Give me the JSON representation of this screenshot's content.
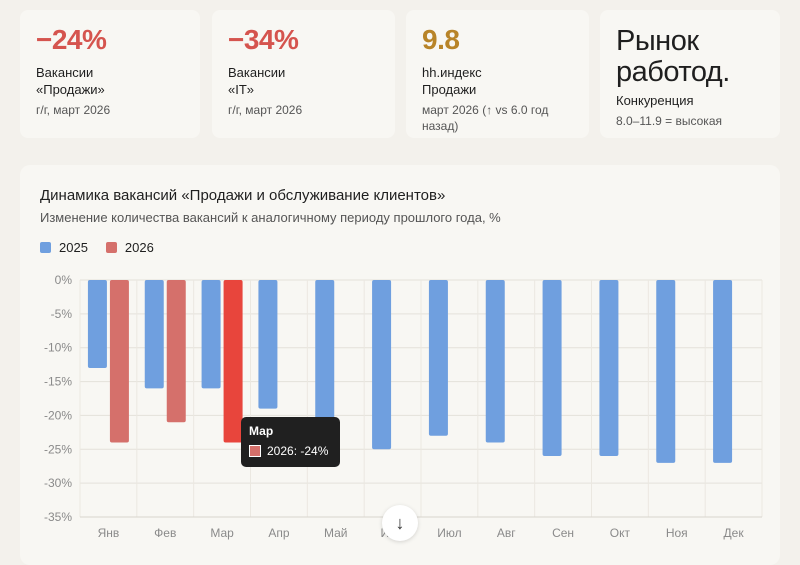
{
  "cards": [
    {
      "value": "−24%",
      "label1": "Вакансии",
      "label2": "«Продажи»",
      "sub": "г/г, март 2026"
    },
    {
      "value": "−34%",
      "label1": "Вакансии",
      "label2": "«IT»",
      "sub": "г/г, март 2026"
    },
    {
      "value": "9.8",
      "label1": "hh.индекс",
      "label2": "Продажи",
      "sub": "март 2026 (↑ vs 6.0 год назад)"
    },
    {
      "value": "Рынок работод.",
      "label1": "Конкуренция",
      "sub": "8.0–11.9 = высокая"
    }
  ],
  "colors": {
    "series2025": "#6f9fdf",
    "series2026": "#d5706b",
    "highlight": "#e8453c"
  },
  "tooltip": {
    "title": "Мар",
    "row": "2026: -24%"
  },
  "scroll_icon": "arrow-down-icon",
  "chart_data": {
    "type": "bar",
    "title": "Динамика вакансий «Продажи и обслуживание клиентов»",
    "subtitle": "Изменение количества вакансий к аналогичному периоду прошлого года, %",
    "categories": [
      "Янв",
      "Фев",
      "Мар",
      "Апр",
      "Май",
      "Июн",
      "Июл",
      "Авг",
      "Сен",
      "Окт",
      "Ноя",
      "Дек"
    ],
    "series": [
      {
        "name": "2025",
        "values": [
          -13,
          -16,
          -16,
          -19,
          -24,
          -25,
          -23,
          -24,
          -26,
          -26,
          -27,
          -27
        ]
      },
      {
        "name": "2026",
        "values": [
          -24,
          -21,
          -24,
          null,
          null,
          null,
          null,
          null,
          null,
          null,
          null,
          null
        ]
      }
    ],
    "ylim": [
      -35,
      0
    ],
    "yticks": [
      0,
      -5,
      -10,
      -15,
      -20,
      -25,
      -30,
      -35
    ],
    "ytick_labels": [
      "0%",
      "-5%",
      "-10%",
      "-15%",
      "-20%",
      "-25%",
      "-30%",
      "-35%"
    ],
    "legend": "top-left",
    "grid": true,
    "highlighted": {
      "series": "2026",
      "category": "Мар"
    }
  }
}
